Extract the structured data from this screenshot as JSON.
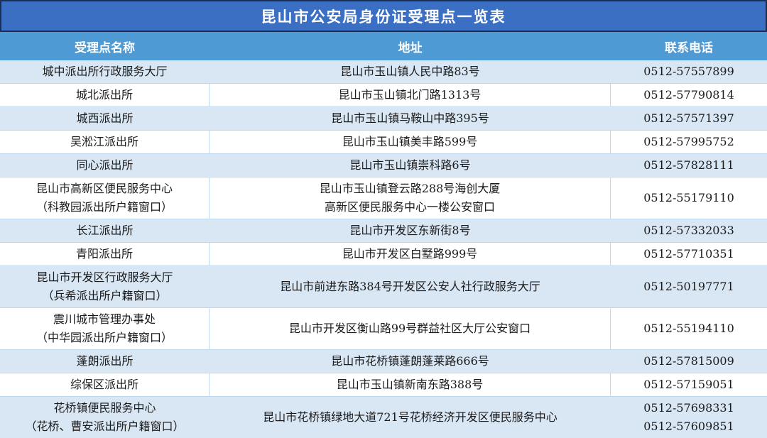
{
  "title": "昆山市公安局身份证受理点一览表",
  "columns": [
    "受理点名称",
    "地址",
    "联系电话"
  ],
  "rows": [
    {
      "name": [
        "城中派出所行政服务大厅"
      ],
      "address": [
        "昆山市玉山镇人民中路83号"
      ],
      "phone": [
        "0512-57557899"
      ]
    },
    {
      "name": [
        "城北派出所"
      ],
      "address": [
        "昆山市玉山镇北门路1313号"
      ],
      "phone": [
        "0512-57790814"
      ]
    },
    {
      "name": [
        "城西派出所"
      ],
      "address": [
        "昆山市玉山镇马鞍山中路395号"
      ],
      "phone": [
        "0512-57571397"
      ]
    },
    {
      "name": [
        "吴淞江派出所"
      ],
      "address": [
        "昆山市玉山镇美丰路599号"
      ],
      "phone": [
        "0512-57995752"
      ]
    },
    {
      "name": [
        "同心派出所"
      ],
      "address": [
        "昆山市玉山镇崇科路6号"
      ],
      "phone": [
        "0512-57828111"
      ]
    },
    {
      "name": [
        "昆山市高新区便民服务中心",
        "（科教园派出所户籍窗口）"
      ],
      "address": [
        "昆山市玉山镇登云路288号海创大厦",
        "高新区便民服务中心一楼公安窗口"
      ],
      "phone": [
        "0512-55179110"
      ]
    },
    {
      "name": [
        "长江派出所"
      ],
      "address": [
        "昆山市开发区东新街8号"
      ],
      "phone": [
        "0512-57332033"
      ]
    },
    {
      "name": [
        "青阳派出所"
      ],
      "address": [
        "昆山市开发区白墅路999号"
      ],
      "phone": [
        "0512-57710351"
      ]
    },
    {
      "name": [
        "昆山市开发区行政服务大厅",
        "（兵希派出所户籍窗口）"
      ],
      "address": [
        "昆山市前进东路384号开发区公安人社行政服务大厅"
      ],
      "phone": [
        "0512-50197771"
      ]
    },
    {
      "name": [
        "震川城市管理办事处",
        "（中华园派出所户籍窗口）"
      ],
      "address": [
        "昆山市开发区衡山路99号群益社区大厅公安窗口"
      ],
      "phone": [
        "0512-55194110"
      ]
    },
    {
      "name": [
        "蓬朗派出所"
      ],
      "address": [
        "昆山市花桥镇蓬朗蓬莱路666号"
      ],
      "phone": [
        "0512-57815009"
      ]
    },
    {
      "name": [
        "综保区派出所"
      ],
      "address": [
        "昆山市玉山镇新南东路388号"
      ],
      "phone": [
        "0512-57159051"
      ]
    },
    {
      "name": [
        "花桥镇便民服务中心",
        "（花桥、曹安派出所户籍窗口）"
      ],
      "address": [
        "昆山市花桥镇绿地大道721号花桥经济开发区便民服务中心"
      ],
      "phone": [
        "0512-57698331",
        "0512-57609851"
      ]
    }
  ],
  "colors": {
    "title_bg": "#3a6fc4",
    "title_border": "#1b2f55",
    "header_bg": "#4e9ad5",
    "header_text": "#ffffff",
    "row_alt_bg": "#d9e7f5",
    "row_white_bg": "#ffffff",
    "cell_divider": "#bfdaf0",
    "body_text": "#1a1a1a"
  }
}
